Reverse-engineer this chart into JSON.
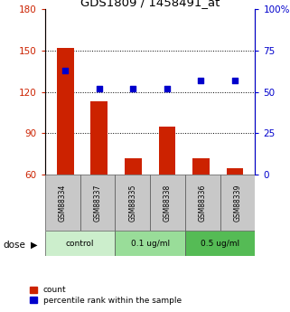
{
  "title": "GDS1809 / 1458491_at",
  "samples": [
    "GSM88334",
    "GSM88337",
    "GSM88335",
    "GSM88338",
    "GSM88336",
    "GSM88339"
  ],
  "bar_values": [
    152,
    113,
    72,
    95,
    72,
    65
  ],
  "percentile_values": [
    63,
    52,
    52,
    52,
    57,
    57
  ],
  "bar_color": "#cc2200",
  "percentile_color": "#0000cc",
  "ylim_left": [
    60,
    180
  ],
  "ylim_right": [
    0,
    100
  ],
  "yticks_left": [
    60,
    90,
    120,
    150,
    180
  ],
  "yticks_right": [
    0,
    25,
    50,
    75,
    100
  ],
  "yticklabels_right": [
    "0",
    "25",
    "50",
    "75",
    "100%"
  ],
  "groups": [
    {
      "label": "control",
      "indices": [
        0,
        1
      ],
      "color": "#cceecc"
    },
    {
      "label": "0.1 ug/ml",
      "indices": [
        2,
        3
      ],
      "color": "#99dd99"
    },
    {
      "label": "0.5 ug/ml",
      "indices": [
        4,
        5
      ],
      "color": "#55bb55"
    }
  ],
  "sample_row_color": "#c8c8c8",
  "legend_count_label": "count",
  "legend_percentile_label": "percentile rank within the sample",
  "dose_label": "dose"
}
